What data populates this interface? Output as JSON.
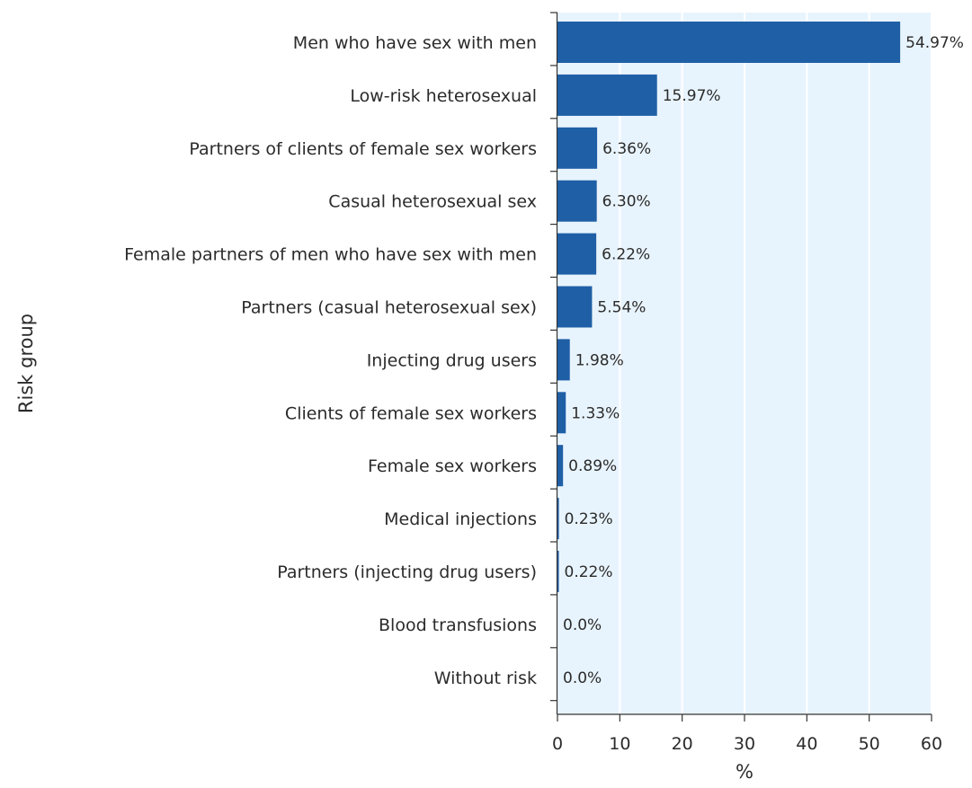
{
  "chart_data": {
    "type": "bar",
    "orientation": "horizontal",
    "ylabel": "Risk group",
    "xlabel": "%",
    "xlim": [
      0,
      60
    ],
    "xticks": [
      0,
      10,
      20,
      30,
      40,
      50,
      60
    ],
    "grid": "vertical",
    "categories": [
      "Men who have sex with men",
      "Low-risk heterosexual",
      "Partners of clients of female sex workers",
      "Casual heterosexual sex",
      "Female partners of men who have sex with men",
      "Partners (casual heterosexual sex)",
      "Injecting drug users",
      "Clients of female sex workers",
      "Female sex workers",
      "Medical injections",
      "Partners (injecting drug users)",
      "Blood transfusions",
      "Without risk"
    ],
    "values": [
      54.97,
      15.97,
      6.36,
      6.3,
      6.22,
      5.54,
      1.98,
      1.33,
      0.89,
      0.23,
      0.22,
      0.0,
      0.0
    ],
    "value_labels": [
      "54.97%",
      "15.97%",
      "6.36%",
      "6.30%",
      "6.22%",
      "5.54%",
      "1.98%",
      "1.33%",
      "0.89%",
      "0.23%",
      "0.22%",
      "0.0%",
      "0.0%"
    ],
    "colors": {
      "bar": "#1f5fa6",
      "plot_background": "#e8f4fd",
      "gridline": "#ffffff",
      "axis": "#333333"
    }
  }
}
